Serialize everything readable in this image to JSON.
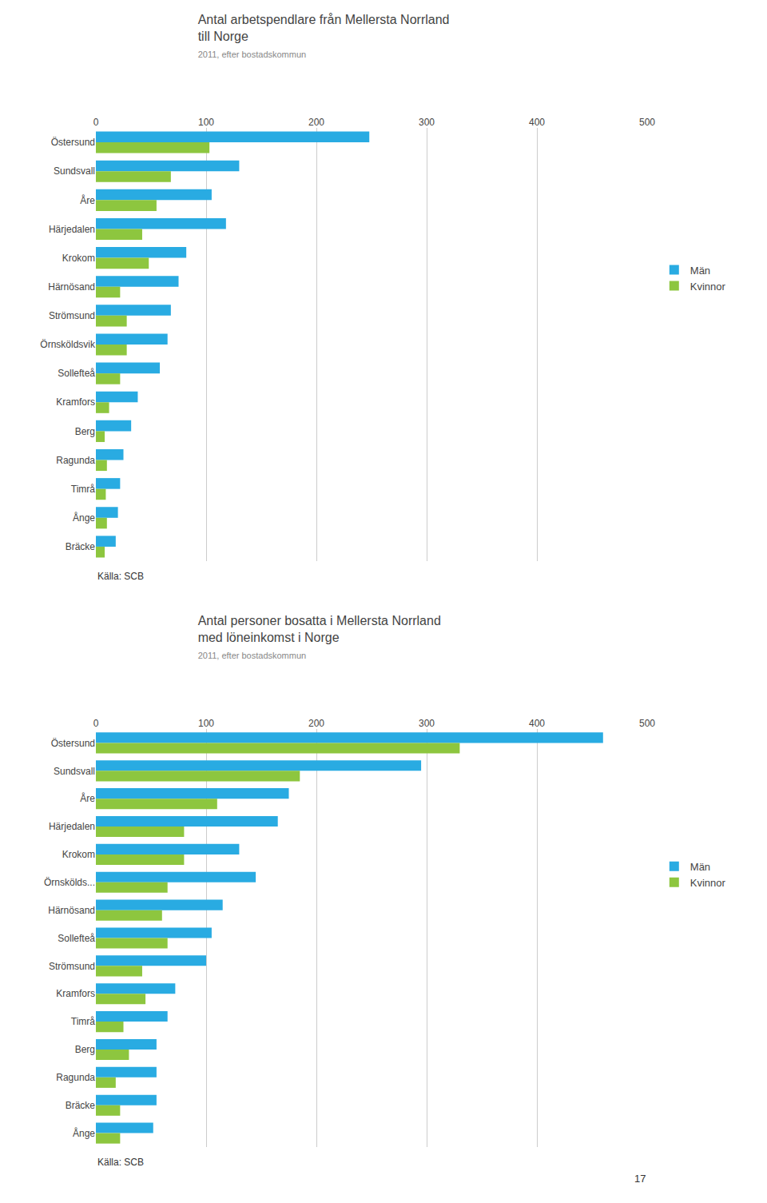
{
  "chart_data": [
    {
      "type": "bar",
      "orientation": "horizontal",
      "title": [
        "Antal arbetspendlare från Mellersta Norrland",
        "till Norge"
      ],
      "subtitle": "2011, efter bostadskommun",
      "categories": [
        "Östersund",
        "Sundsvall",
        "Åre",
        "Härjedalen",
        "Krokom",
        "Härnösand",
        "Strömsund",
        "Örnsköldsvik",
        "Sollefteå",
        "Kramfors",
        "Berg",
        "Ragunda",
        "Timrå",
        "Ånge",
        "Bräcke"
      ],
      "series": [
        {
          "name": "Män",
          "color": "#29ABE2",
          "values": [
            248,
            130,
            105,
            118,
            82,
            75,
            68,
            65,
            58,
            38,
            32,
            25,
            22,
            20,
            18
          ]
        },
        {
          "name": "Kvinnor",
          "color": "#8DC63F",
          "values": [
            103,
            68,
            55,
            42,
            48,
            22,
            28,
            28,
            22,
            12,
            8,
            10,
            9,
            10,
            8
          ]
        }
      ],
      "xlim": [
        0,
        500
      ],
      "xticks": [
        0,
        100,
        200,
        300,
        400,
        500
      ],
      "grid": true,
      "legend": "right",
      "annotations": [
        "Källa: SCB"
      ]
    },
    {
      "type": "bar",
      "orientation": "horizontal",
      "title": [
        "Antal personer bosatta i Mellersta Norrland",
        "med löneinkomst i Norge"
      ],
      "subtitle": "2011, efter bostadskommun",
      "categories": [
        "Östersund",
        "Sundsvall",
        "Åre",
        "Härjedalen",
        "Krokom",
        "Örnskölds...",
        "Härnösand",
        "Sollefteå",
        "Strömsund",
        "Kramfors",
        "Timrå",
        "Berg",
        "Ragunda",
        "Bräcke",
        "Ånge"
      ],
      "series": [
        {
          "name": "Män",
          "color": "#29ABE2",
          "values": [
            460,
            295,
            175,
            165,
            130,
            145,
            115,
            105,
            100,
            72,
            65,
            55,
            55,
            55,
            52
          ]
        },
        {
          "name": "Kvinnor",
          "color": "#8DC63F",
          "values": [
            330,
            185,
            110,
            80,
            80,
            65,
            60,
            65,
            42,
            45,
            25,
            30,
            18,
            22,
            22
          ]
        }
      ],
      "xlim": [
        0,
        500
      ],
      "xticks": [
        0,
        100,
        200,
        300,
        400,
        500
      ],
      "grid": true,
      "legend": "right",
      "annotations": [
        "Källa: SCB",
        "17"
      ]
    }
  ]
}
